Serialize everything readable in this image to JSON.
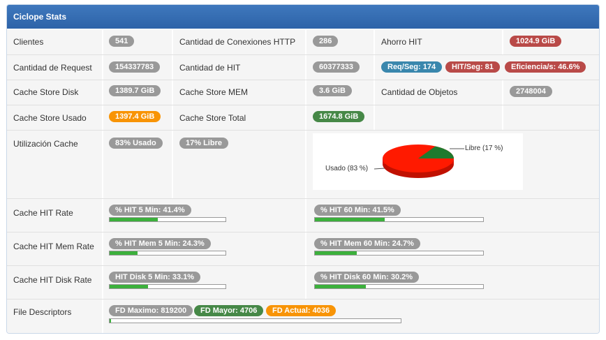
{
  "panel": {
    "title": "Ciclope Stats"
  },
  "stats": {
    "clientes_label": "Clientes",
    "clientes_value": "541",
    "conexiones_label": "Cantidad de Conexiones HTTP",
    "conexiones_value": "286",
    "ahorro_label": "Ahorro HIT",
    "ahorro_value": "1024.9 GiB",
    "request_label": "Cantidad de Request",
    "request_value": "154337783",
    "hit_label": "Cantidad de HIT",
    "hit_value": "60377333",
    "req_seg": "Req/Seg: 174",
    "hit_seg": "HIT/Seg: 81",
    "eficiencia": "Eficiencia/s: 46.6%",
    "disk_label": "Cache Store Disk",
    "disk_value": "1389.7 GiB",
    "mem_label": "Cache Store MEM",
    "mem_value": "3.6 GiB",
    "objetos_label": "Cantidad de Objetos",
    "objetos_value": "2748004",
    "usado_label": "Cache Store Usado",
    "usado_value": "1397.4 GiB",
    "total_label": "Cache Store Total",
    "total_value": "1674.8 GiB",
    "util_label": "Utilización Cache",
    "util_usado": "83% Usado",
    "util_libre": "17% Libre"
  },
  "pie": {
    "usado_label": "Usado (83 %)",
    "libre_label": "Libre (17 %)",
    "usado_pct": 83,
    "libre_pct": 17,
    "usado_color": "#ff1a00",
    "libre_color": "#1e7a2e"
  },
  "rates": [
    {
      "label": "Cache HIT Rate",
      "left_text": "% HIT 5 Min: 41.4%",
      "left_pct": 41.4,
      "right_text": "% HIT 60 Min: 41.5%",
      "right_pct": 41.5
    },
    {
      "label": "Cache HIT Mem Rate",
      "left_text": "% HIT Mem 5 Min: 24.3%",
      "left_pct": 24.3,
      "right_text": "% HIT Mem 60 Min: 24.7%",
      "right_pct": 24.7
    },
    {
      "label": "Cache HIT Disk Rate",
      "left_text": "HIT Disk 5 Min: 33.1%",
      "left_pct": 33.1,
      "right_text": "% HIT Disk 60 Min: 30.2%",
      "right_pct": 30.2
    }
  ],
  "fd": {
    "label": "File Descriptors",
    "maximo": "FD Maximo: 819200",
    "mayor": "FD Mayor: 4706",
    "actual": "FD Actual: 4036",
    "actual_pct": 0.5
  },
  "colors": {
    "header": "#2f66ab",
    "bar_fill": "#3cb03c",
    "cell_bg": "#f5f5f5"
  }
}
